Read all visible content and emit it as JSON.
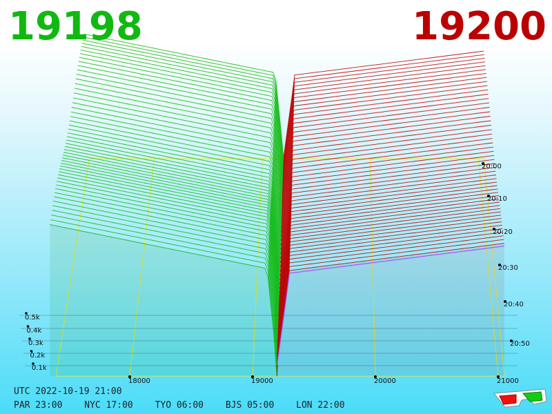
{
  "header": {
    "bid_price": "19198",
    "ask_price": "19200",
    "bid_color": "#10b910",
    "ask_color": "#bb0000"
  },
  "footer": {
    "utc": "UTC 2022-10-19 21:00",
    "zones": [
      {
        "label": "PAR 23:00"
      },
      {
        "label": "NYC 17:00"
      },
      {
        "label": "TYO 06:00"
      },
      {
        "label": "BJS 05:00"
      },
      {
        "label": "LON 22:00"
      }
    ],
    "glasses_icon": "anaglyph-3d-glasses-icon"
  },
  "chart_data": {
    "type": "area",
    "title": "",
    "x_axis": {
      "label": "",
      "ticks": [
        18000,
        19000,
        20000,
        21000
      ],
      "range": [
        17200,
        21200
      ]
    },
    "depth_axis": {
      "label": "",
      "ticks": [
        0.1,
        0.2,
        0.3,
        0.4,
        0.5
      ],
      "tick_labels": [
        "0.1k",
        "0.2k",
        "0.3k",
        "0.4k",
        "0.5k"
      ],
      "unit": "k"
    },
    "time_axis": {
      "label": "",
      "ticks": [
        "20:00",
        "20:10",
        "20:20",
        "20:30",
        "20:40",
        "20:50"
      ]
    },
    "series": [
      {
        "side": "bid",
        "color": "#10b910"
      },
      {
        "side": "ask",
        "color": "#bb0000"
      }
    ],
    "midprice": 19199,
    "grid": true
  }
}
